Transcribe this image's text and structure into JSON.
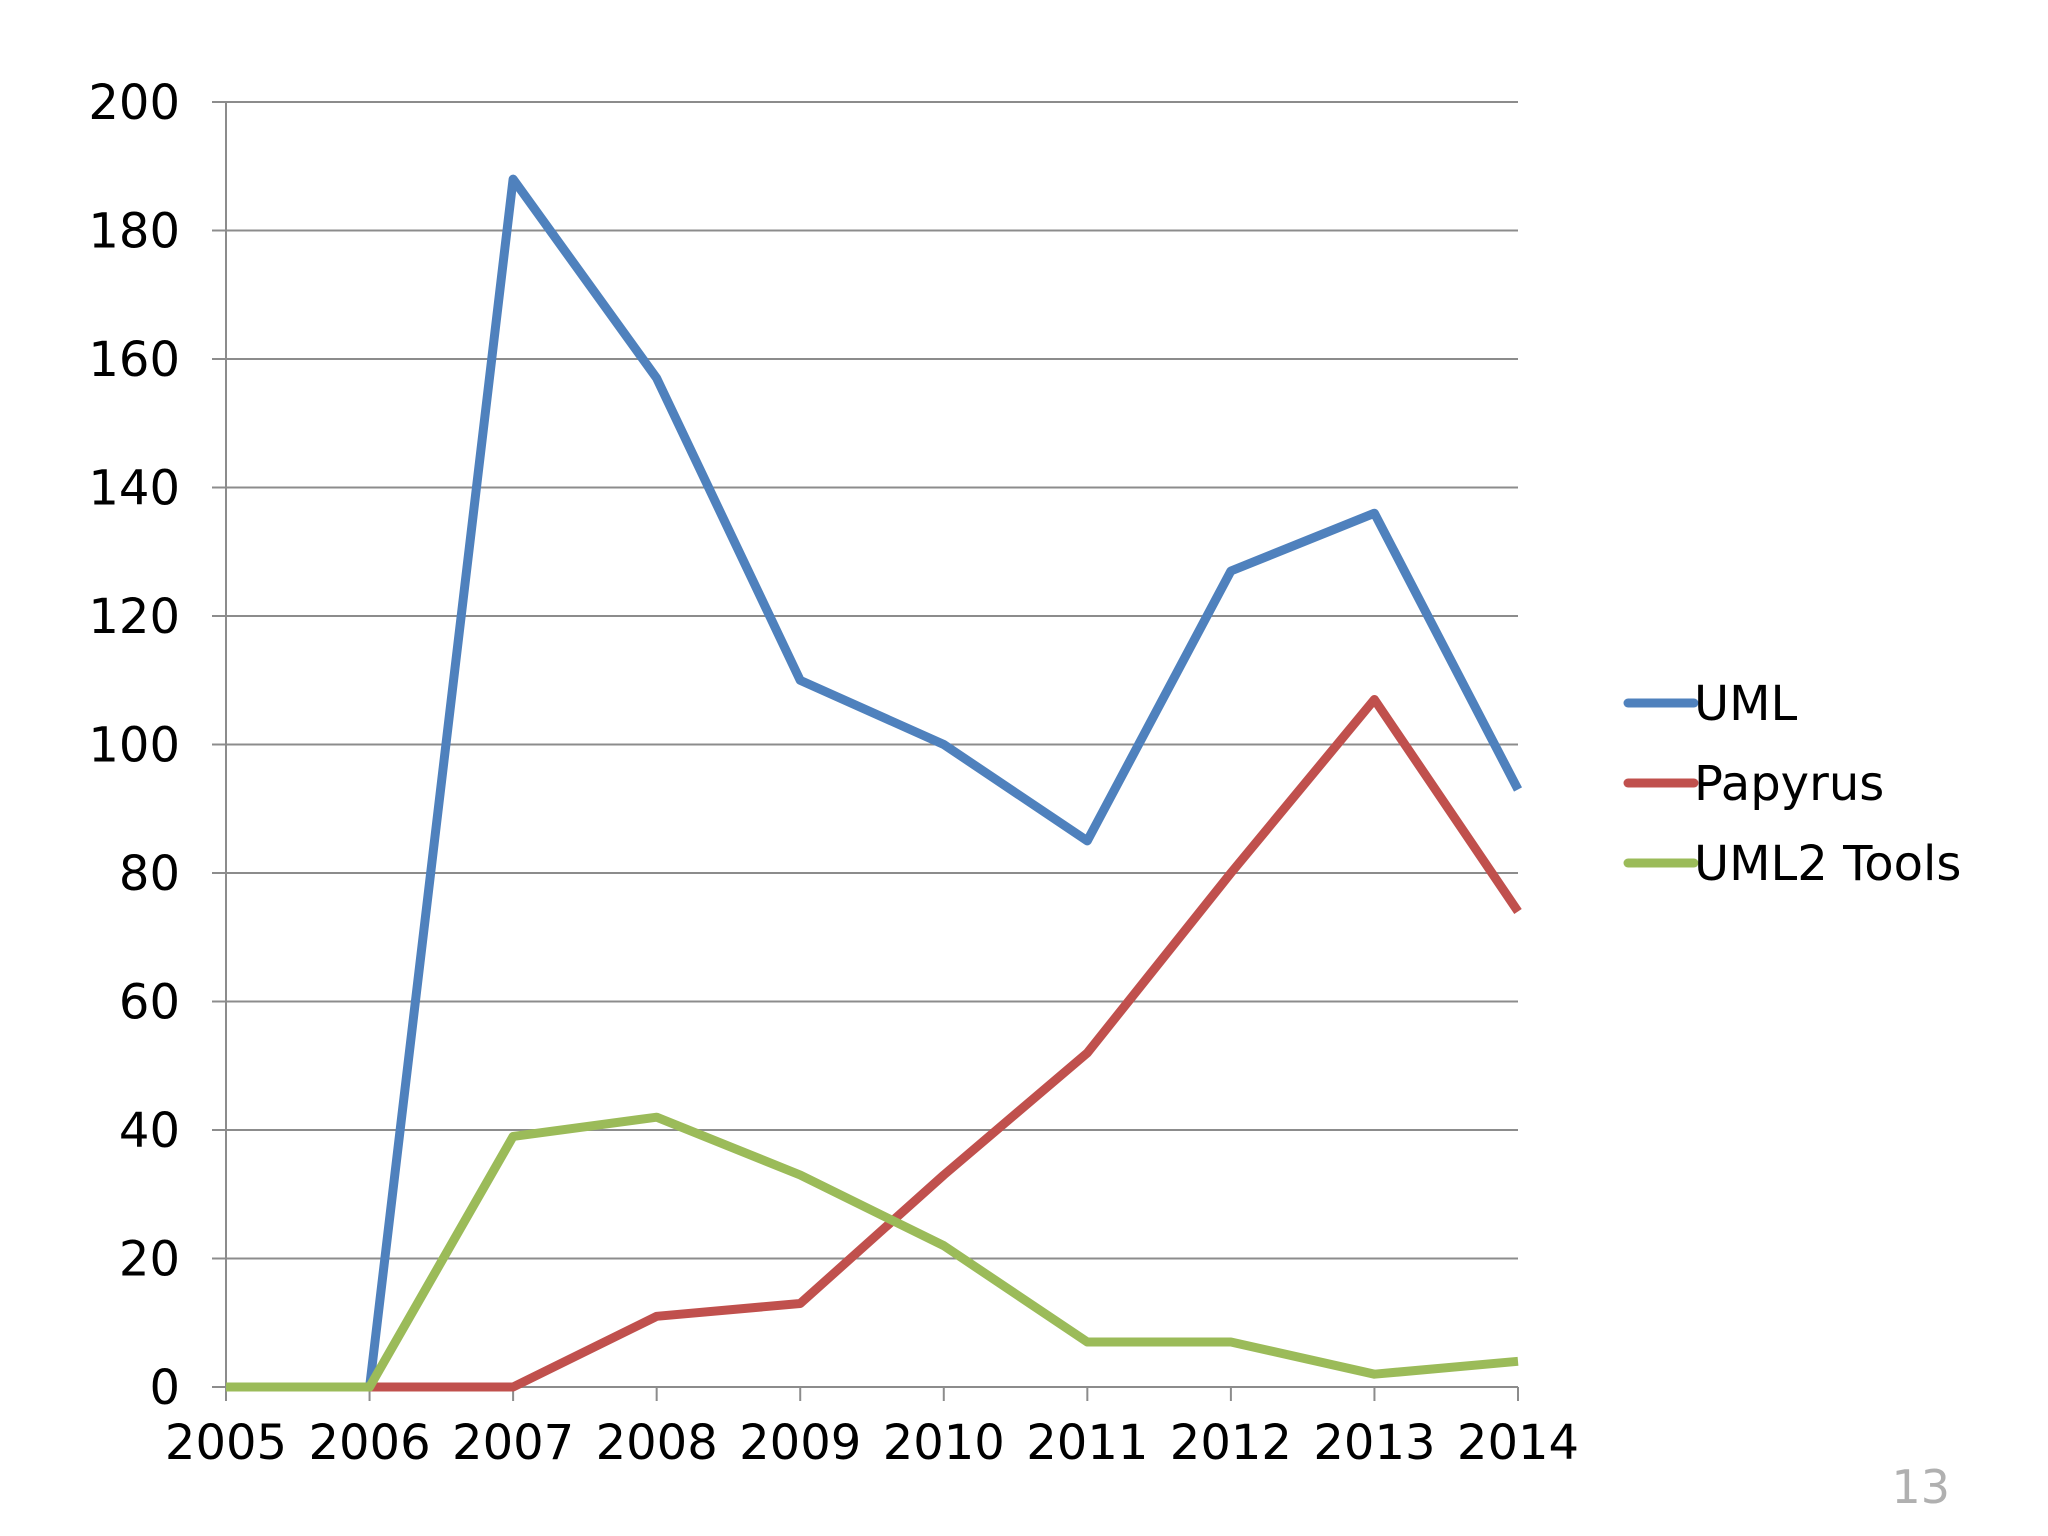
{
  "page_number": "13",
  "chart_data": {
    "type": "line",
    "title": "",
    "xlabel": "",
    "ylabel": "",
    "categories": [
      "2005",
      "2006",
      "2007",
      "2008",
      "2009",
      "2010",
      "2011",
      "2012",
      "2013",
      "2014"
    ],
    "ylim": [
      0,
      200
    ],
    "yticks": [
      "0",
      "20",
      "40",
      "60",
      "80",
      "100",
      "120",
      "140",
      "160",
      "180",
      "200"
    ],
    "grid": true,
    "legend_position": "right",
    "series": [
      {
        "name": "UML",
        "color": "#4f81bd",
        "values": [
          0,
          0,
          188,
          157,
          110,
          100,
          85,
          127,
          136,
          93
        ]
      },
      {
        "name": "Papyrus",
        "color": "#c0504d",
        "values": [
          null,
          0,
          0,
          11,
          13,
          33,
          52,
          80,
          107,
          74
        ]
      },
      {
        "name": "UML2 Tools",
        "color": "#9bbb59",
        "values": [
          0,
          0,
          39,
          42,
          33,
          22,
          7,
          7,
          2,
          4
        ]
      }
    ]
  }
}
